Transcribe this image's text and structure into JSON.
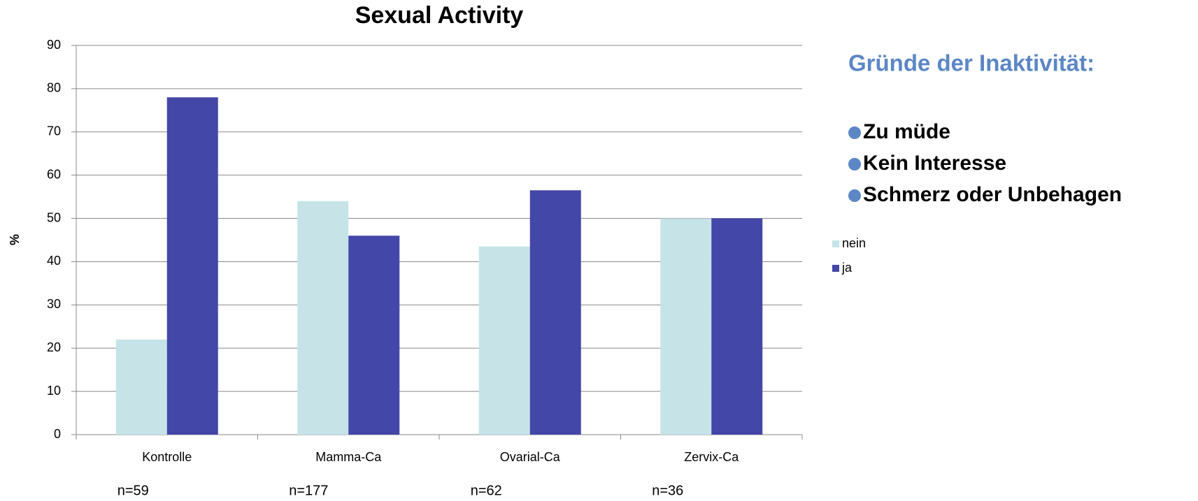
{
  "chart_data": {
    "type": "bar",
    "title": "Sexual Activity",
    "y_label": "%",
    "categories": [
      "Kontrolle",
      "Mamma-Ca",
      "Ovarial-Ca",
      "Zervix-Ca"
    ],
    "sample_sizes": [
      "n=59",
      "n=177",
      "n=62",
      "n=36"
    ],
    "series": [
      {
        "name": "nein",
        "color": "#c6e4e8",
        "values": [
          22,
          54,
          43.5,
          50
        ]
      },
      {
        "name": "ja",
        "color": "#4347a8",
        "values": [
          78,
          46,
          56.5,
          50
        ]
      }
    ],
    "ylim": [
      0,
      90
    ],
    "yticks": [
      0,
      10,
      20,
      30,
      40,
      50,
      60,
      70,
      80,
      90
    ],
    "grid": true,
    "legend": "right"
  },
  "sidebar": {
    "title": "Gründe der Inaktivität:",
    "items": [
      "Zu müde",
      "Kein Interesse",
      "Schmerz oder Unbehagen"
    ]
  }
}
